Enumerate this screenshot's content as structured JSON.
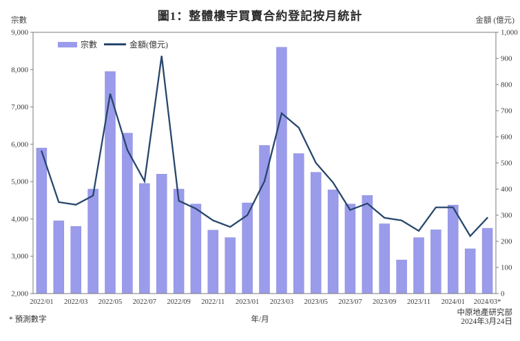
{
  "header": {
    "title": "圖1：整體樓宇買賣合約登記按月統計",
    "y_left_label": "宗數",
    "y_right_label": "金額 (億元)"
  },
  "legend": {
    "bars_label": "宗數",
    "line_label": "金額(億元)"
  },
  "footer": {
    "footnote": "* 預測數字",
    "x_axis_title": "年/月",
    "source": "中原地產研究部",
    "date": "2024年3月24日"
  },
  "colors": {
    "bar": "#9b9beb",
    "bar_edge": "#8a8ade",
    "line": "#27466b",
    "axis": "#7a7a7a",
    "text": "#3a3a3a"
  },
  "chart_data": {
    "type": "bar",
    "subtype": "bar+line combo, dual axis",
    "title": "圖1：整體樓宇買賣合約登記按月統計",
    "xlabel": "年/月",
    "ylabel_left": "宗數",
    "ylabel_right": "金額 (億元)",
    "grid": false,
    "legend_position": "top-left-inside",
    "categories": [
      "2022/01",
      "2022/02",
      "2022/03",
      "2022/04",
      "2022/05",
      "2022/06",
      "2022/07",
      "2022/08",
      "2022/09",
      "2022/10",
      "2022/11",
      "2022/12",
      "2023/01",
      "2023/02",
      "2023/03",
      "2023/04",
      "2023/05",
      "2023/06",
      "2023/07",
      "2023/08",
      "2023/09",
      "2023/10",
      "2023/11",
      "2023/12",
      "2024/01",
      "2024/02",
      "2024/03*"
    ],
    "x_tick_labels": [
      "2022/01",
      "2022/03",
      "2022/05",
      "2022/07",
      "2022/09",
      "2022/11",
      "2023/01",
      "2023/03",
      "2023/05",
      "2023/07",
      "2023/09",
      "2023/11",
      "2024/01",
      "2024/03*"
    ],
    "series": [
      {
        "name": "宗數",
        "type": "bar",
        "axis": "left",
        "values": [
          5900,
          3950,
          3800,
          4800,
          7950,
          6300,
          4950,
          5200,
          4800,
          4400,
          3700,
          3500,
          4430,
          5970,
          8600,
          5750,
          5250,
          4780,
          4400,
          4630,
          3870,
          2900,
          3500,
          3710,
          4370,
          3200,
          3750
        ]
      },
      {
        "name": "金額(億元)",
        "type": "line",
        "axis": "right",
        "values": [
          545,
          350,
          340,
          375,
          765,
          550,
          430,
          910,
          355,
          325,
          280,
          255,
          300,
          430,
          690,
          635,
          500,
          425,
          320,
          345,
          290,
          280,
          240,
          330,
          330,
          220,
          290
        ]
      }
    ],
    "ylim_left": [
      2000,
      9000
    ],
    "ytick_step_left": 1000,
    "ylim_right": [
      0,
      1000
    ],
    "ytick_step_right": 100,
    "footnote": "* 預測數字",
    "source": "中原地產研究部 2024年3月24日"
  }
}
